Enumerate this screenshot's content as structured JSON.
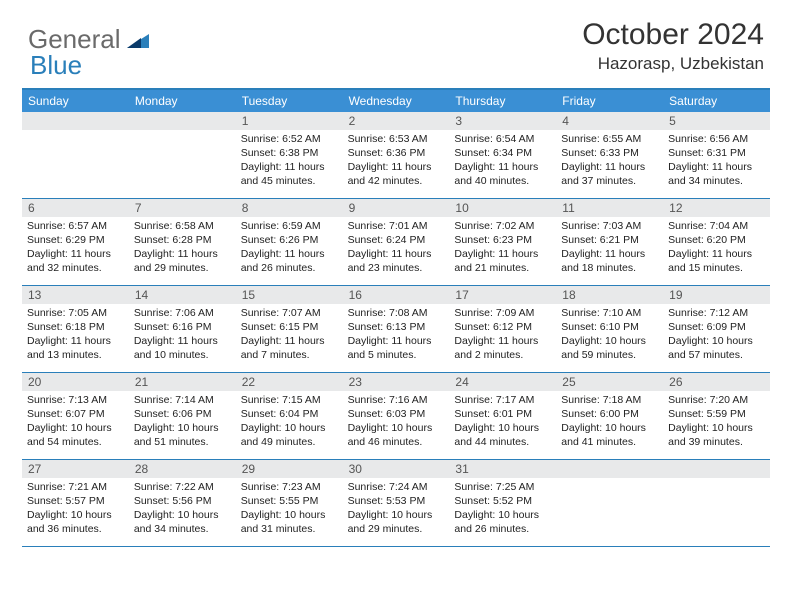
{
  "logo": {
    "text1": "General",
    "text2": "Blue"
  },
  "title": "October 2024",
  "location": "Hazorasp, Uzbekistan",
  "colors": {
    "headerBlue": "#3a8fd4",
    "ruleBlue": "#2a7fba",
    "dayNumBg": "#e8e9ea",
    "text": "#222222"
  },
  "daysOfWeek": [
    "Sunday",
    "Monday",
    "Tuesday",
    "Wednesday",
    "Thursday",
    "Friday",
    "Saturday"
  ],
  "weeks": [
    [
      null,
      null,
      {
        "n": "1",
        "sr": "6:52 AM",
        "ss": "6:38 PM",
        "dl": "11 hours and 45 minutes."
      },
      {
        "n": "2",
        "sr": "6:53 AM",
        "ss": "6:36 PM",
        "dl": "11 hours and 42 minutes."
      },
      {
        "n": "3",
        "sr": "6:54 AM",
        "ss": "6:34 PM",
        "dl": "11 hours and 40 minutes."
      },
      {
        "n": "4",
        "sr": "6:55 AM",
        "ss": "6:33 PM",
        "dl": "11 hours and 37 minutes."
      },
      {
        "n": "5",
        "sr": "6:56 AM",
        "ss": "6:31 PM",
        "dl": "11 hours and 34 minutes."
      }
    ],
    [
      {
        "n": "6",
        "sr": "6:57 AM",
        "ss": "6:29 PM",
        "dl": "11 hours and 32 minutes."
      },
      {
        "n": "7",
        "sr": "6:58 AM",
        "ss": "6:28 PM",
        "dl": "11 hours and 29 minutes."
      },
      {
        "n": "8",
        "sr": "6:59 AM",
        "ss": "6:26 PM",
        "dl": "11 hours and 26 minutes."
      },
      {
        "n": "9",
        "sr": "7:01 AM",
        "ss": "6:24 PM",
        "dl": "11 hours and 23 minutes."
      },
      {
        "n": "10",
        "sr": "7:02 AM",
        "ss": "6:23 PM",
        "dl": "11 hours and 21 minutes."
      },
      {
        "n": "11",
        "sr": "7:03 AM",
        "ss": "6:21 PM",
        "dl": "11 hours and 18 minutes."
      },
      {
        "n": "12",
        "sr": "7:04 AM",
        "ss": "6:20 PM",
        "dl": "11 hours and 15 minutes."
      }
    ],
    [
      {
        "n": "13",
        "sr": "7:05 AM",
        "ss": "6:18 PM",
        "dl": "11 hours and 13 minutes."
      },
      {
        "n": "14",
        "sr": "7:06 AM",
        "ss": "6:16 PM",
        "dl": "11 hours and 10 minutes."
      },
      {
        "n": "15",
        "sr": "7:07 AM",
        "ss": "6:15 PM",
        "dl": "11 hours and 7 minutes."
      },
      {
        "n": "16",
        "sr": "7:08 AM",
        "ss": "6:13 PM",
        "dl": "11 hours and 5 minutes."
      },
      {
        "n": "17",
        "sr": "7:09 AM",
        "ss": "6:12 PM",
        "dl": "11 hours and 2 minutes."
      },
      {
        "n": "18",
        "sr": "7:10 AM",
        "ss": "6:10 PM",
        "dl": "10 hours and 59 minutes."
      },
      {
        "n": "19",
        "sr": "7:12 AM",
        "ss": "6:09 PM",
        "dl": "10 hours and 57 minutes."
      }
    ],
    [
      {
        "n": "20",
        "sr": "7:13 AM",
        "ss": "6:07 PM",
        "dl": "10 hours and 54 minutes."
      },
      {
        "n": "21",
        "sr": "7:14 AM",
        "ss": "6:06 PM",
        "dl": "10 hours and 51 minutes."
      },
      {
        "n": "22",
        "sr": "7:15 AM",
        "ss": "6:04 PM",
        "dl": "10 hours and 49 minutes."
      },
      {
        "n": "23",
        "sr": "7:16 AM",
        "ss": "6:03 PM",
        "dl": "10 hours and 46 minutes."
      },
      {
        "n": "24",
        "sr": "7:17 AM",
        "ss": "6:01 PM",
        "dl": "10 hours and 44 minutes."
      },
      {
        "n": "25",
        "sr": "7:18 AM",
        "ss": "6:00 PM",
        "dl": "10 hours and 41 minutes."
      },
      {
        "n": "26",
        "sr": "7:20 AM",
        "ss": "5:59 PM",
        "dl": "10 hours and 39 minutes."
      }
    ],
    [
      {
        "n": "27",
        "sr": "7:21 AM",
        "ss": "5:57 PM",
        "dl": "10 hours and 36 minutes."
      },
      {
        "n": "28",
        "sr": "7:22 AM",
        "ss": "5:56 PM",
        "dl": "10 hours and 34 minutes."
      },
      {
        "n": "29",
        "sr": "7:23 AM",
        "ss": "5:55 PM",
        "dl": "10 hours and 31 minutes."
      },
      {
        "n": "30",
        "sr": "7:24 AM",
        "ss": "5:53 PM",
        "dl": "10 hours and 29 minutes."
      },
      {
        "n": "31",
        "sr": "7:25 AM",
        "ss": "5:52 PM",
        "dl": "10 hours and 26 minutes."
      },
      null,
      null
    ]
  ],
  "labels": {
    "sunrise": "Sunrise:",
    "sunset": "Sunset:",
    "daylight": "Daylight:"
  }
}
